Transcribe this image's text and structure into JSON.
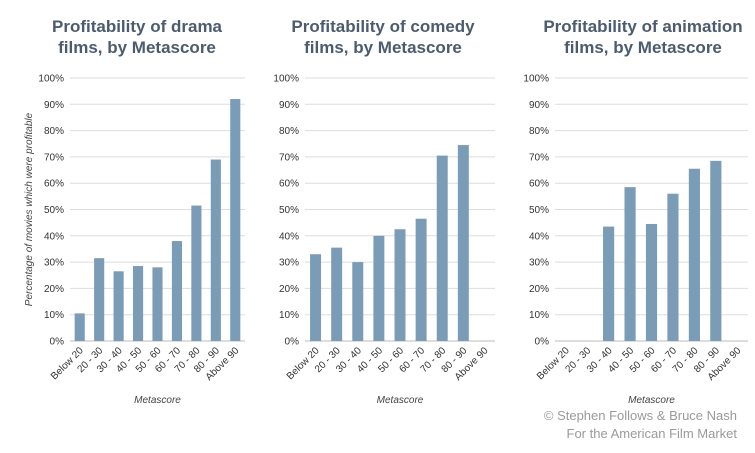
{
  "colors": {
    "bar": "#7b9cb6",
    "title": "#4d5b6e",
    "grid": "#dddddd",
    "credit": "#9a9a9a"
  },
  "y_axis_label": "Percentage of movies which were profitable",
  "x_axis_label": "Metascore",
  "credit": {
    "line1": "© Stephen Follows & Bruce Nash",
    "line2": "For the American Film Market"
  },
  "chart_data": [
    {
      "type": "bar",
      "title_lines": [
        "Profitability of drama",
        "films, by Metascore"
      ],
      "categories": [
        "Below 20",
        "20 - 30",
        "30 - 40",
        "40 - 50",
        "50 - 60",
        "60 - 70",
        "70 - 80",
        "80 - 90",
        "Above 90"
      ],
      "values": [
        10.5,
        31.5,
        26.5,
        28.5,
        28,
        38,
        51.5,
        69,
        92
      ],
      "ylim": [
        0,
        100
      ],
      "yticks": [
        "0%",
        "10%",
        "20%",
        "30%",
        "40%",
        "50%",
        "60%",
        "70%",
        "80%",
        "90%",
        "100%"
      ],
      "xlabel": "Metascore",
      "ylabel": "Percentage of movies which were profitable"
    },
    {
      "type": "bar",
      "title_lines": [
        "Profitability of comedy",
        "films, by Metascore"
      ],
      "categories": [
        "Below 20",
        "20 - 30",
        "30 - 40",
        "40 - 50",
        "50 - 60",
        "60 - 70",
        "70 - 80",
        "80 - 90",
        "Above 90"
      ],
      "values": [
        33,
        35.5,
        30,
        40,
        42.5,
        46.5,
        70.5,
        74.5,
        null
      ],
      "ylim": [
        0,
        100
      ],
      "yticks": [
        "0%",
        "10%",
        "20%",
        "30%",
        "40%",
        "50%",
        "60%",
        "70%",
        "80%",
        "90%",
        "100%"
      ],
      "xlabel": "Metascore"
    },
    {
      "type": "bar",
      "title_lines": [
        "Profitability of animation",
        "films, by Metascore"
      ],
      "categories": [
        "Below 20",
        "20 - 30",
        "30 - 40",
        "40 - 50",
        "50 - 60",
        "60 - 70",
        "70 - 80",
        "80 - 90",
        "Above 90"
      ],
      "values": [
        null,
        null,
        43.5,
        58.5,
        44.5,
        56,
        65.5,
        68.5,
        null
      ],
      "ylim": [
        0,
        100
      ],
      "yticks": [
        "0%",
        "10%",
        "20%",
        "30%",
        "40%",
        "50%",
        "60%",
        "70%",
        "80%",
        "90%",
        "100%"
      ],
      "xlabel": "Metascore"
    }
  ]
}
